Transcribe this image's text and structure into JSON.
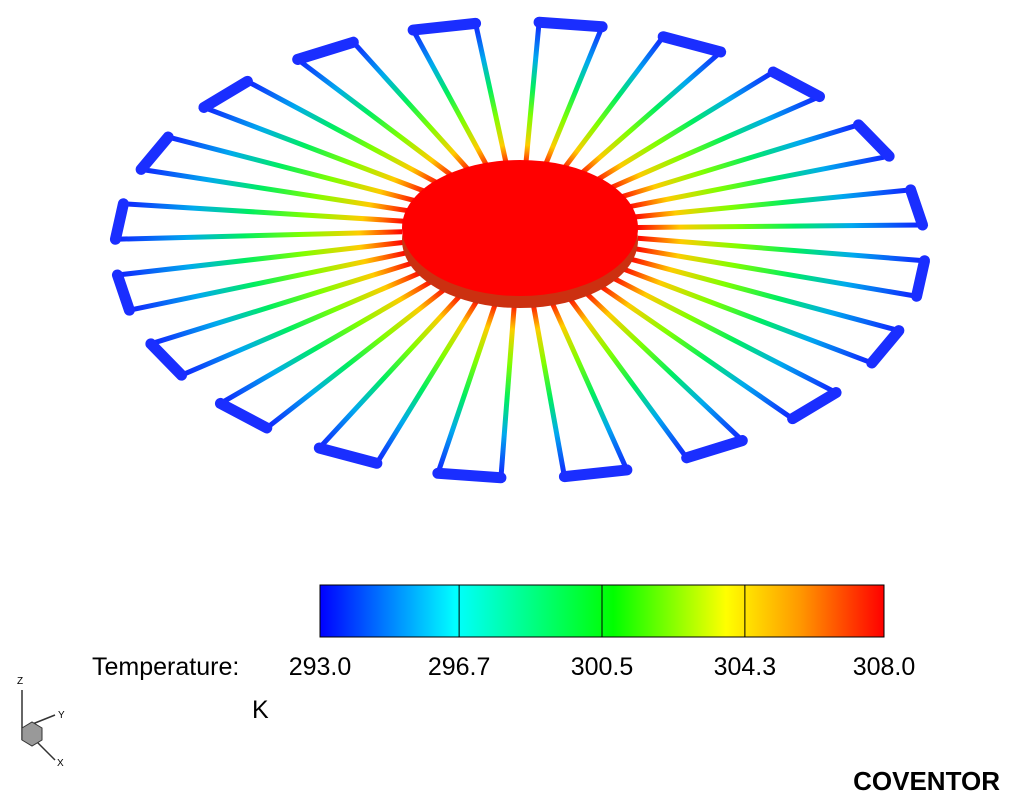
{
  "colorbar": {
    "label": "Temperature:",
    "unit": "K",
    "range": [
      293,
      308
    ],
    "ticks": [
      {
        "value": 293,
        "label": "293.0"
      },
      {
        "value": 296.7,
        "label": "296.7"
      },
      {
        "value": 300.5,
        "label": "300.5"
      },
      {
        "value": 304.3,
        "label": "304.3"
      },
      {
        "value": 308,
        "label": "308.0"
      }
    ]
  },
  "triad": {
    "z": "Z",
    "y": "Y",
    "x": "X"
  },
  "brand": "COVENTOR"
}
